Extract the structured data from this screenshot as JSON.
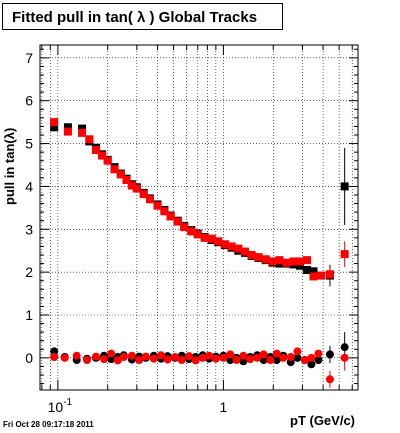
{
  "title": "Fitted pull in tan( λ )  Global Tracks",
  "timestamp": "Fri Oct 28 09:17:18 2011",
  "chart_data": {
    "type": "scatter",
    "title": "Fitted pull in tan( λ )  Global Tracks",
    "xlabel": "pT (GeV/c)",
    "ylabel": "pull in tan(λ)",
    "xscale": "log",
    "xlim": [
      0.078,
      6.5
    ],
    "ylim": [
      -0.75,
      7.3
    ],
    "grid": true,
    "x_tick_labels": [
      {
        "value": 0.1,
        "base": "10",
        "exp": "-1"
      },
      {
        "value": 1,
        "base": "1",
        "exp": ""
      }
    ],
    "y_tick_labels": [
      "0",
      "1",
      "2",
      "3",
      "4",
      "5",
      "6",
      "7"
    ],
    "series": [
      {
        "color": "#000000",
        "marker": "square",
        "points": [
          [
            0.095,
            5.38
          ],
          [
            0.115,
            5.38
          ],
          [
            0.14,
            5.35
          ],
          [
            0.155,
            5.05
          ],
          [
            0.17,
            4.9
          ],
          [
            0.185,
            4.75
          ],
          [
            0.2,
            4.62
          ],
          [
            0.22,
            4.45
          ],
          [
            0.24,
            4.3
          ],
          [
            0.26,
            4.18
          ],
          [
            0.28,
            4.05
          ],
          [
            0.3,
            3.98
          ],
          [
            0.33,
            3.85
          ],
          [
            0.36,
            3.72
          ],
          [
            0.4,
            3.58
          ],
          [
            0.44,
            3.45
          ],
          [
            0.48,
            3.32
          ],
          [
            0.53,
            3.2
          ],
          [
            0.58,
            3.08
          ],
          [
            0.64,
            2.98
          ],
          [
            0.7,
            2.9
          ],
          [
            0.77,
            2.82
          ],
          [
            0.85,
            2.75
          ],
          [
            0.93,
            2.7
          ],
          [
            1.02,
            2.63
          ],
          [
            1.12,
            2.57
          ],
          [
            1.23,
            2.5
          ],
          [
            1.35,
            2.45
          ],
          [
            1.48,
            2.38
          ],
          [
            1.63,
            2.33
          ],
          [
            1.8,
            2.28
          ],
          [
            1.98,
            2.22
          ],
          [
            2.18,
            2.2
          ],
          [
            2.4,
            2.2
          ],
          [
            2.65,
            2.18
          ],
          [
            2.9,
            2.15
          ],
          [
            3.2,
            2.05
          ],
          [
            3.5,
            2.02
          ],
          [
            4.4,
            1.92
          ],
          [
            5.4,
            4.0
          ]
        ],
        "errors": [
          [
            4.4,
            0.25
          ],
          [
            5.4,
            0.9
          ]
        ]
      },
      {
        "color": "#ff0000",
        "marker": "square",
        "points": [
          [
            0.095,
            5.5
          ],
          [
            0.115,
            5.28
          ],
          [
            0.14,
            5.25
          ],
          [
            0.155,
            5.1
          ],
          [
            0.17,
            4.85
          ],
          [
            0.185,
            4.72
          ],
          [
            0.2,
            4.6
          ],
          [
            0.22,
            4.4
          ],
          [
            0.24,
            4.28
          ],
          [
            0.26,
            4.15
          ],
          [
            0.28,
            4.02
          ],
          [
            0.3,
            3.95
          ],
          [
            0.33,
            3.82
          ],
          [
            0.36,
            3.7
          ],
          [
            0.4,
            3.55
          ],
          [
            0.44,
            3.42
          ],
          [
            0.48,
            3.3
          ],
          [
            0.53,
            3.18
          ],
          [
            0.58,
            3.05
          ],
          [
            0.64,
            2.95
          ],
          [
            0.7,
            2.88
          ],
          [
            0.77,
            2.8
          ],
          [
            0.85,
            2.78
          ],
          [
            0.93,
            2.72
          ],
          [
            1.02,
            2.65
          ],
          [
            1.12,
            2.6
          ],
          [
            1.23,
            2.55
          ],
          [
            1.35,
            2.48
          ],
          [
            1.48,
            2.4
          ],
          [
            1.63,
            2.35
          ],
          [
            1.8,
            2.3
          ],
          [
            1.98,
            2.25
          ],
          [
            2.18,
            2.28
          ],
          [
            2.4,
            2.22
          ],
          [
            2.65,
            2.25
          ],
          [
            2.9,
            2.25
          ],
          [
            3.2,
            2.28
          ],
          [
            3.5,
            1.9
          ],
          [
            3.9,
            1.92
          ],
          [
            4.4,
            1.95
          ],
          [
            5.4,
            2.42
          ]
        ],
        "errors": [
          [
            4.4,
            0.15
          ],
          [
            5.4,
            0.3
          ]
        ]
      },
      {
        "color": "#000000",
        "marker": "circle",
        "points": [
          [
            0.095,
            0.15
          ],
          [
            0.11,
            0.02
          ],
          [
            0.13,
            -0.05
          ],
          [
            0.15,
            -0.02
          ],
          [
            0.17,
            0.0
          ],
          [
            0.19,
            0.05
          ],
          [
            0.21,
            -0.03
          ],
          [
            0.23,
            0.02
          ],
          [
            0.25,
            0.06
          ],
          [
            0.28,
            -0.04
          ],
          [
            0.31,
            0.03
          ],
          [
            0.34,
            0.0
          ],
          [
            0.38,
            0.05
          ],
          [
            0.42,
            -0.02
          ],
          [
            0.46,
            0.04
          ],
          [
            0.51,
            0.0
          ],
          [
            0.56,
            0.05
          ],
          [
            0.62,
            -0.03
          ],
          [
            0.68,
            0.02
          ],
          [
            0.75,
            0.06
          ],
          [
            0.82,
            -0.02
          ],
          [
            0.9,
            0.03
          ],
          [
            1.0,
            0.05
          ],
          [
            1.1,
            -0.05
          ],
          [
            1.2,
            0.0
          ],
          [
            1.32,
            -0.08
          ],
          [
            1.45,
            0.02
          ],
          [
            1.6,
            0.06
          ],
          [
            1.75,
            -0.05
          ],
          [
            1.92,
            0.02
          ],
          [
            2.1,
            -0.05
          ],
          [
            2.3,
            0.05
          ],
          [
            2.55,
            -0.1
          ],
          [
            2.8,
            0.0
          ],
          [
            3.1,
            -0.05
          ],
          [
            3.4,
            -0.15
          ],
          [
            3.75,
            -0.05
          ],
          [
            4.4,
            0.08
          ],
          [
            5.4,
            0.25
          ]
        ],
        "errors": [
          [
            4.4,
            0.2
          ],
          [
            5.4,
            0.35
          ]
        ]
      },
      {
        "color": "#ff0000",
        "marker": "circle",
        "points": [
          [
            0.095,
            0.02
          ],
          [
            0.11,
            0.0
          ],
          [
            0.13,
            0.05
          ],
          [
            0.15,
            -0.05
          ],
          [
            0.17,
            0.03
          ],
          [
            0.19,
            -0.03
          ],
          [
            0.21,
            0.1
          ],
          [
            0.23,
            -0.06
          ],
          [
            0.25,
            0.02
          ],
          [
            0.28,
            0.05
          ],
          [
            0.31,
            -0.05
          ],
          [
            0.34,
            0.03
          ],
          [
            0.38,
            -0.02
          ],
          [
            0.42,
            0.06
          ],
          [
            0.46,
            -0.04
          ],
          [
            0.51,
            0.02
          ],
          [
            0.56,
            -0.05
          ],
          [
            0.62,
            0.04
          ],
          [
            0.68,
            -0.06
          ],
          [
            0.75,
            0.0
          ],
          [
            0.82,
            0.05
          ],
          [
            0.9,
            -0.02
          ],
          [
            1.0,
            0.0
          ],
          [
            1.1,
            0.08
          ],
          [
            1.2,
            -0.05
          ],
          [
            1.32,
            0.05
          ],
          [
            1.45,
            -0.03
          ],
          [
            1.6,
            0.0
          ],
          [
            1.75,
            0.08
          ],
          [
            1.92,
            -0.05
          ],
          [
            2.1,
            0.1
          ],
          [
            2.3,
            0.0
          ],
          [
            2.55,
            0.02
          ],
          [
            2.8,
            0.15
          ],
          [
            3.1,
            -0.05
          ],
          [
            3.4,
            0.0
          ],
          [
            3.75,
            0.1
          ],
          [
            4.4,
            -0.5
          ],
          [
            5.4,
            0.0
          ]
        ],
        "errors": [
          [
            4.4,
            0.2
          ],
          [
            5.4,
            0.3
          ]
        ]
      }
    ]
  }
}
